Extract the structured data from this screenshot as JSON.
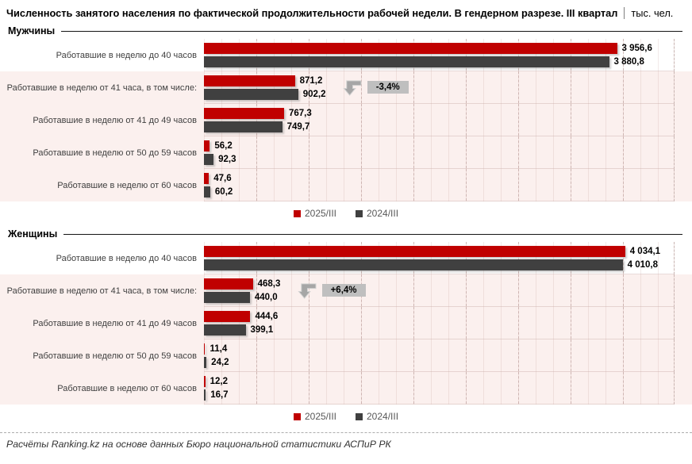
{
  "title": {
    "main": "Численность занятого населения по фактической продолжительности рабочей недели. В гендерном разрезе. III квартал",
    "unit": "тыс. чел."
  },
  "colors": {
    "series_2025": "#C00000",
    "series_2024": "#404040",
    "row_highlight_bg": "#FBF0EE",
    "callout_bg": "#BFBFBF",
    "callout_arrow": "#A6A6A6",
    "legend_text": "#595959"
  },
  "legend": [
    {
      "label": "2025/III",
      "color": "#C00000"
    },
    {
      "label": "2024/III",
      "color": "#404040"
    }
  ],
  "chart_data": [
    {
      "type": "bar",
      "title": "Мужчины",
      "orientation": "horizontal",
      "unit": "тыс. чел.",
      "xlim": [
        0,
        4500
      ],
      "grid": true,
      "legend_position": "bottom-center",
      "categories": [
        "Работавшие в неделю до 40 часов",
        "Работавшие в неделю от 41 часа, в том числе:",
        "Работавшие в неделю от 41 до 49 часов",
        "Работавшие в неделю от 50 до 59 часов",
        "Работавшие в неделю от 60 часов"
      ],
      "series": [
        {
          "name": "2025/III",
          "color": "#C00000",
          "values": [
            3956.6,
            871.2,
            767.3,
            56.2,
            47.6
          ],
          "labels": [
            "3 956,6",
            "871,2",
            "767,3",
            "56,2",
            "47,6"
          ]
        },
        {
          "name": "2024/III",
          "color": "#404040",
          "values": [
            3880.8,
            902.2,
            749.7,
            92.3,
            60.2
          ],
          "labels": [
            "3 880,8",
            "902,2",
            "749,7",
            "92,3",
            "60,2"
          ]
        }
      ],
      "callout": {
        "row_index": 1,
        "text": "-3,4%"
      }
    },
    {
      "type": "bar",
      "title": "Женщины",
      "orientation": "horizontal",
      "unit": "тыс. чел.",
      "xlim": [
        0,
        4500
      ],
      "grid": true,
      "legend_position": "bottom-center",
      "categories": [
        "Работавшие в неделю до 40 часов",
        "Работавшие в неделю от 41 часа, в том числе:",
        "Работавшие в неделю от 41 до 49 часов",
        "Работавшие в неделю от 50 до 59 часов",
        "Работавшие в неделю от 60 часов"
      ],
      "series": [
        {
          "name": "2025/III",
          "color": "#C00000",
          "values": [
            4034.1,
            468.3,
            444.6,
            11.4,
            12.2
          ],
          "labels": [
            "4 034,1",
            "468,3",
            "444,6",
            "11,4",
            "12,2"
          ]
        },
        {
          "name": "2024/III",
          "color": "#404040",
          "values": [
            4010.8,
            440.0,
            399.1,
            24.2,
            16.7
          ],
          "labels": [
            "4 010,8",
            "440,0",
            "399,1",
            "24,2",
            "16,7"
          ]
        }
      ],
      "callout": {
        "row_index": 1,
        "text": "+6,4%"
      }
    }
  ],
  "footer": {
    "source": "Расчёты Ranking.kz на основе данных Бюро национальной статистики АСПиР РК"
  }
}
